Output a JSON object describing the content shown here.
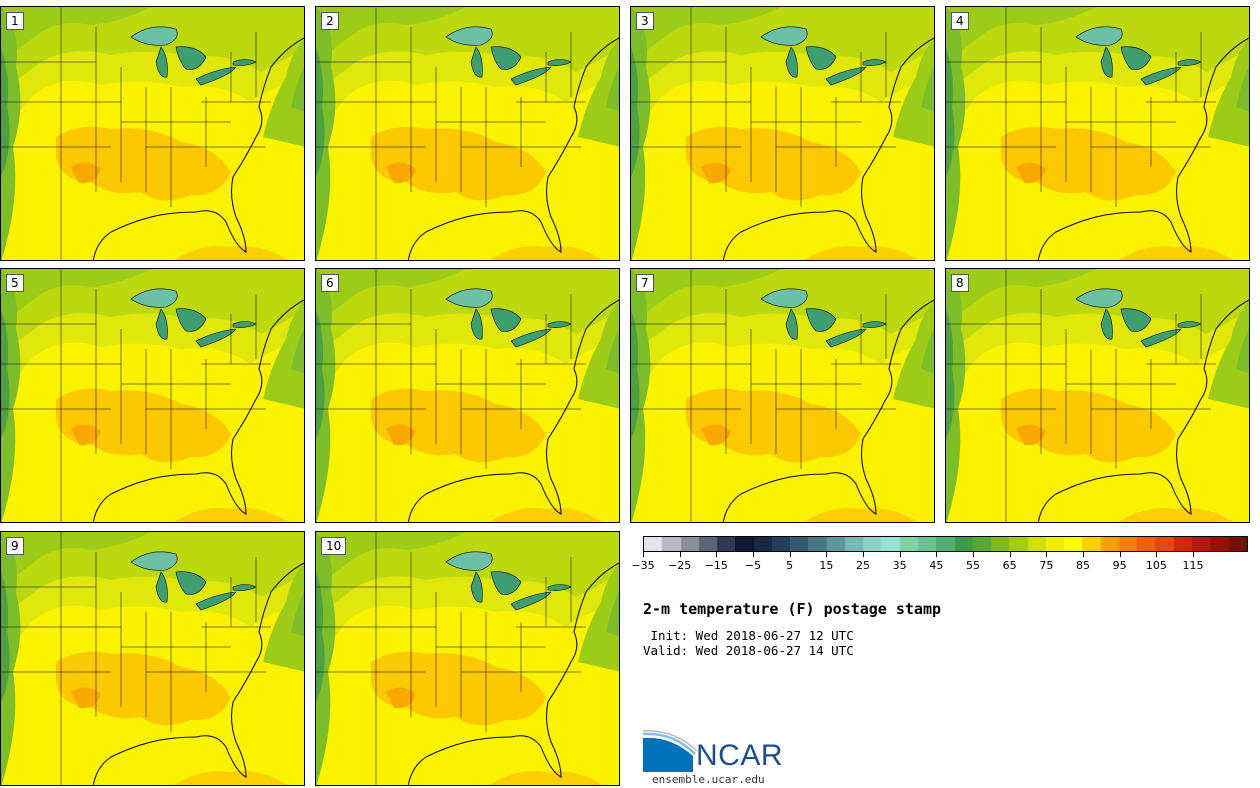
{
  "panels": [
    {
      "label": "1"
    },
    {
      "label": "2"
    },
    {
      "label": "3"
    },
    {
      "label": "4"
    },
    {
      "label": "5"
    },
    {
      "label": "6"
    },
    {
      "label": "7"
    },
    {
      "label": "8"
    },
    {
      "label": "9"
    },
    {
      "label": "10"
    }
  ],
  "colorbar": {
    "colors": [
      "#e2e2e8",
      "#b6b8c2",
      "#8a8e9e",
      "#5d6478",
      "#2f3a54",
      "#0f1a34",
      "#182944",
      "#243f5a",
      "#345a70",
      "#497888",
      "#5e96a0",
      "#78b8b8",
      "#8ed0c8",
      "#96e2d2",
      "#82d2a8",
      "#6ac08e",
      "#52ae72",
      "#3c9a48",
      "#5aa634",
      "#80b81e",
      "#a8cc0a",
      "#d2e000",
      "#f0f000",
      "#ffff00",
      "#fcd000",
      "#faa000",
      "#f88008",
      "#f06008",
      "#e44808",
      "#d02808",
      "#b41808",
      "#961008",
      "#701008"
    ],
    "tick_labels": [
      "−35",
      "−25",
      "−15",
      "−5",
      "5",
      "15",
      "25",
      "35",
      "45",
      "55",
      "65",
      "75",
      "85",
      "95",
      "105",
      "115"
    ]
  },
  "title": "2-m temperature (F) postage stamp",
  "init_text": " Init: Wed 2018-06-27 12 UTC",
  "valid_text": "Valid: Wed 2018-06-27 14 UTC",
  "logo": {
    "name": "NCAR",
    "url": "ensemble.ucar.edu"
  }
}
